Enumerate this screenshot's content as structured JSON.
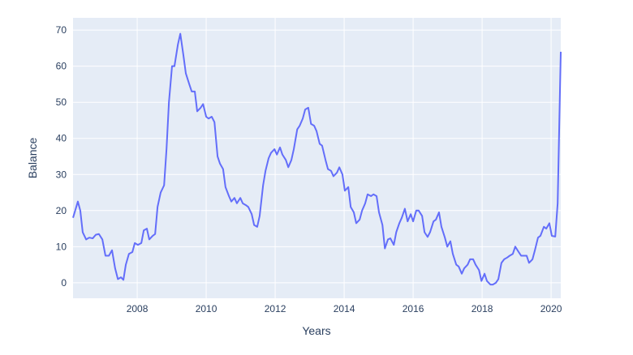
{
  "chart_data": {
    "type": "line",
    "xlabel": "Years",
    "ylabel": "Balance",
    "xlim": [
      2006.14,
      2020.28
    ],
    "ylim": [
      -4.3,
      73.4
    ],
    "xticks": [
      2008,
      2010,
      2012,
      2014,
      2016,
      2018,
      2020
    ],
    "yticks": [
      0,
      10,
      20,
      30,
      40,
      50,
      60,
      70
    ],
    "grid": true,
    "color": "#636efa",
    "x": [
      2006.14,
      2006.28,
      2006.35,
      2006.42,
      2006.52,
      2006.61,
      2006.71,
      2006.8,
      2006.89,
      2006.99,
      2007.08,
      2007.18,
      2007.27,
      2007.36,
      2007.44,
      2007.53,
      2007.6,
      2007.67,
      2007.76,
      2007.86,
      2007.93,
      2008.02,
      2008.12,
      2008.19,
      2008.28,
      2008.35,
      2008.45,
      2008.52,
      2008.59,
      2008.68,
      2008.78,
      2008.85,
      2008.92,
      2009.01,
      2009.08,
      2009.18,
      2009.25,
      2009.34,
      2009.41,
      2009.51,
      2009.58,
      2009.67,
      2009.74,
      2009.84,
      2009.91,
      2010.0,
      2010.07,
      2010.16,
      2010.24,
      2010.33,
      2010.4,
      2010.49,
      2010.56,
      2010.66,
      2010.73,
      2010.82,
      2010.89,
      2010.99,
      2011.06,
      2011.15,
      2011.22,
      2011.32,
      2011.39,
      2011.48,
      2011.55,
      2011.65,
      2011.72,
      2011.81,
      2011.88,
      2011.98,
      2012.05,
      2012.14,
      2012.21,
      2012.31,
      2012.38,
      2012.47,
      2012.54,
      2012.64,
      2012.71,
      2012.8,
      2012.87,
      2012.96,
      2013.04,
      2013.13,
      2013.2,
      2013.29,
      2013.36,
      2013.46,
      2013.53,
      2013.62,
      2013.69,
      2013.79,
      2013.86,
      2013.95,
      2014.02,
      2014.12,
      2014.19,
      2014.28,
      2014.35,
      2014.45,
      2014.52,
      2014.61,
      2014.68,
      2014.78,
      2014.85,
      2014.94,
      2015.01,
      2015.11,
      2015.18,
      2015.27,
      2015.34,
      2015.44,
      2015.51,
      2015.6,
      2015.67,
      2015.76,
      2015.84,
      2015.93,
      2016.0,
      2016.09,
      2016.16,
      2016.26,
      2016.33,
      2016.42,
      2016.49,
      2016.59,
      2016.66,
      2016.75,
      2016.82,
      2016.92,
      2016.99,
      2017.08,
      2017.15,
      2017.25,
      2017.32,
      2017.41,
      2017.48,
      2017.58,
      2017.65,
      2017.74,
      2017.81,
      2017.91,
      2017.98,
      2018.07,
      2018.14,
      2018.24,
      2018.31,
      2018.4,
      2018.47,
      2018.56,
      2018.64,
      2018.73,
      2018.8,
      2018.89,
      2018.96,
      2019.06,
      2019.13,
      2019.22,
      2019.29,
      2019.36,
      2019.46,
      2019.53,
      2019.62,
      2019.69,
      2019.79,
      2019.86,
      2019.95,
      2020.02,
      2020.12,
      2020.19,
      2020.28
    ],
    "values": [
      18,
      22.5,
      20,
      14,
      12,
      12.5,
      12.3,
      13.3,
      13.5,
      12,
      7.5,
      7.5,
      9,
      4,
      1,
      1.5,
      0.8,
      5,
      8,
      8.5,
      11,
      10.5,
      11,
      14.5,
      15,
      12,
      13,
      13.5,
      21,
      25,
      27,
      37,
      50,
      60,
      60,
      66,
      69,
      63,
      58,
      55,
      53,
      53,
      47.5,
      48.5,
      49.5,
      46,
      45.5,
      46,
      44.5,
      35,
      33,
      31.5,
      26.5,
      24,
      22.5,
      23.5,
      22,
      23.5,
      22,
      21.5,
      21,
      19,
      16,
      15.5,
      18.5,
      27,
      31,
      34.5,
      36,
      37,
      35.5,
      37.5,
      35.5,
      34,
      32,
      34,
      37,
      42.5,
      43.5,
      45.5,
      48,
      48.5,
      44,
      43.5,
      42,
      38.5,
      38,
      34,
      31.5,
      31,
      29.5,
      30.5,
      32,
      30,
      25.5,
      26.5,
      21,
      19.5,
      16.5,
      17.5,
      20,
      22,
      24.5,
      24,
      24.5,
      24,
      19.5,
      16,
      9.5,
      12,
      12.3,
      10.5,
      14,
      16.5,
      18,
      20.5,
      17,
      19,
      17,
      20,
      20,
      18.5,
      14,
      12.7,
      14,
      17,
      17.5,
      19.5,
      15.5,
      12.5,
      10,
      11.5,
      8,
      5,
      4.5,
      2.5,
      4,
      5,
      6.5,
      6.5,
      5,
      3.5,
      0.5,
      2.5,
      0.5,
      -0.5,
      -0.5,
      0,
      1,
      5.5,
      6.5,
      7,
      7.5,
      8,
      10,
      8.5,
      7.5,
      7.5,
      7.5,
      5.5,
      6.5,
      9,
      12.5,
      13,
      15.5,
      15,
      16.5,
      13,
      12.8,
      22,
      64
    ]
  }
}
